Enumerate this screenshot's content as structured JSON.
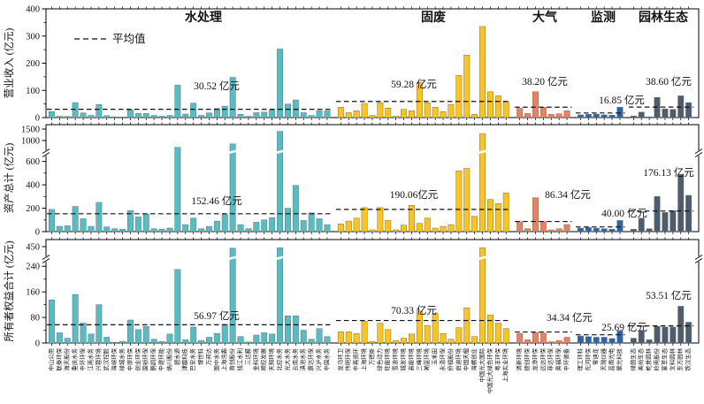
{
  "chart_data": {
    "type": "bar",
    "unit": "亿元",
    "legend_label": "平均值",
    "panels": [
      {
        "metric": "revenue",
        "ylabel": "营业收入 (亿元)",
        "ylim": [
          0,
          400
        ],
        "yticks": [
          0,
          100,
          200,
          300,
          400
        ],
        "axis_break": false,
        "group_averages": [
          "30.52 亿元",
          "59.28 亿元",
          "38.20 亿元",
          "16.85 亿元",
          "38.60 亿元"
        ],
        "group_average_values": [
          30.52,
          59.28,
          38.2,
          16.85,
          38.6
        ]
      },
      {
        "metric": "assets",
        "ylabel": "资产总计 (亿元)",
        "ylim": [
          0,
          1500
        ],
        "yticks": [
          0,
          200,
          400,
          600,
          1000,
          1500
        ],
        "axis_break": true,
        "group_averages": [
          "152.46 亿元",
          "190.06亿元",
          "86.34 亿元",
          "40.00 亿元",
          "176.13 亿元"
        ],
        "group_average_values": [
          152.46,
          190.06,
          86.34,
          40.0,
          176.13
        ]
      },
      {
        "metric": "equity",
        "ylabel": "所有者权益合计 (亿元)",
        "ylim": [
          0,
          450
        ],
        "yticks": [
          0,
          80,
          160,
          240,
          450
        ],
        "axis_break": true,
        "group_averages": [
          "56.97 亿元",
          "70.33 亿元",
          "34.34 亿元",
          "25.69 亿元",
          "53.51 亿元"
        ],
        "group_average_values": [
          56.97,
          70.33,
          34.34,
          25.69,
          53.51
        ]
      }
    ],
    "groups": [
      {
        "name": "水处理",
        "color": "#53BFC5",
        "companies": [
          "中山公用",
          "联泰环保",
          "海天股份",
          "重庆水务",
          "中环环保",
          "江南水务",
          "兴蓉环境",
          "武汉控股",
          "海峡环保",
          "绿城水务",
          "中原环保",
          "创业环保",
          "国祯环保",
          "鹏鹞环保",
          "中建环能",
          "纳川股份",
          "碧水源",
          "津膜科技",
          "巴安水务",
          "博世科",
          "万邦达",
          "国中水务",
          "上海洗霸",
          "首创股份",
          "钱江水利",
          "三达膜",
          "金科环境",
          "顺控发展",
          "天翔环境",
          "北控水务",
          "光大水务",
          "云南水务",
          "滇池水务",
          "康达环保",
          "兴泸水务",
          "中国水务"
        ],
        "revenue": [
          22,
          5,
          4,
          55,
          17,
          8,
          48,
          7,
          3,
          2,
          28,
          15,
          15,
          8,
          5,
          8,
          120,
          13,
          53,
          8,
          17,
          33,
          42,
          148,
          12,
          5,
          18,
          20,
          28,
          252,
          50,
          65,
          18,
          8,
          25,
          25
        ],
        "assets": [
          190,
          45,
          50,
          215,
          110,
          45,
          250,
          40,
          25,
          20,
          180,
          125,
          150,
          25,
          20,
          30,
          700,
          60,
          115,
          25,
          45,
          90,
          145,
          850,
          60,
          25,
          80,
          100,
          120,
          1400,
          200,
          395,
          95,
          160,
          110,
          60
        ],
        "equity": [
          135,
          32,
          15,
          152,
          62,
          28,
          120,
          18,
          2,
          5,
          72,
          42,
          52,
          12,
          5,
          28,
          230,
          10,
          50,
          8,
          18,
          30,
          58,
          420,
          20,
          3,
          25,
          32,
          28,
          430,
          85,
          85,
          40,
          12,
          45,
          20
        ]
      },
      {
        "name": "固废",
        "color": "#FFC414",
        "companies": [
          "龙马环卫",
          "伟明环保",
          "中再资环",
          "上海环境",
          "万德斯",
          "绿色动力",
          "旺能环境",
          "雪浪环境",
          "城发环境",
          "高能环境",
          "三峰环境",
          "瀚蓝环境",
          "玉禾田",
          "永清环保",
          "侨银股份",
          "启迪环境",
          "中国天楹",
          "海螺创业",
          "中国光大国际",
          "中国光大绿色环保",
          "粤丰环保",
          "上海实业环境"
        ],
        "revenue": [
          38,
          18,
          25,
          52,
          8,
          55,
          35,
          5,
          30,
          25,
          128,
          55,
          38,
          22,
          48,
          155,
          230,
          12,
          335,
          95,
          80,
          58
        ],
        "assets": [
          65,
          90,
          115,
          205,
          15,
          205,
          95,
          15,
          55,
          225,
          70,
          115,
          30,
          45,
          60,
          520,
          540,
          130,
          1300,
          275,
          240,
          330
        ],
        "equity": [
          35,
          35,
          30,
          68,
          5,
          62,
          42,
          8,
          15,
          28,
          100,
          55,
          92,
          30,
          12,
          48,
          110,
          20,
          430,
          88,
          62,
          45
        ]
      },
      {
        "name": "大气",
        "color": "#F0805C",
        "companies": [
          "清新环境",
          "德创环保",
          "龙净环保",
          "远达环保",
          "菲达环保",
          "奥福环保",
          "中环装备"
        ],
        "revenue": [
          34,
          15,
          95,
          38,
          12,
          14,
          25
        ],
        "assets": [
          85,
          25,
          290,
          85,
          15,
          25,
          60
        ],
        "equity": [
          30,
          10,
          33,
          31,
          4,
          8,
          18
        ]
      },
      {
        "name": "监测",
        "color": "#2767A9",
        "companies": [
          "理工环科",
          "先河环保",
          "雪迪龙",
          "天瑞仪器",
          "蓝盾光电",
          "聚光科技"
        ],
        "revenue": [
          10,
          12,
          13,
          10,
          9,
          38
        ],
        "assets": [
          30,
          35,
          30,
          25,
          20,
          95
        ],
        "equity": [
          22,
          20,
          18,
          18,
          14,
          38
        ]
      },
      {
        "name": "园林生态",
        "color": "#4C5D6E",
        "companies": [
          "绿茵生态",
          "美尚生态",
          "乾景园林",
          "岭南股份",
          "蒙草生态",
          "文科园林",
          "东方园林",
          "铁汉生态"
        ],
        "revenue": [
          6,
          20,
          3,
          74,
          32,
          30,
          80,
          55
        ],
        "assets": [
          20,
          115,
          25,
          300,
          165,
          180,
          490,
          310
        ],
        "equity": [
          15,
          40,
          10,
          52,
          50,
          50,
          115,
          65
        ]
      }
    ]
  }
}
